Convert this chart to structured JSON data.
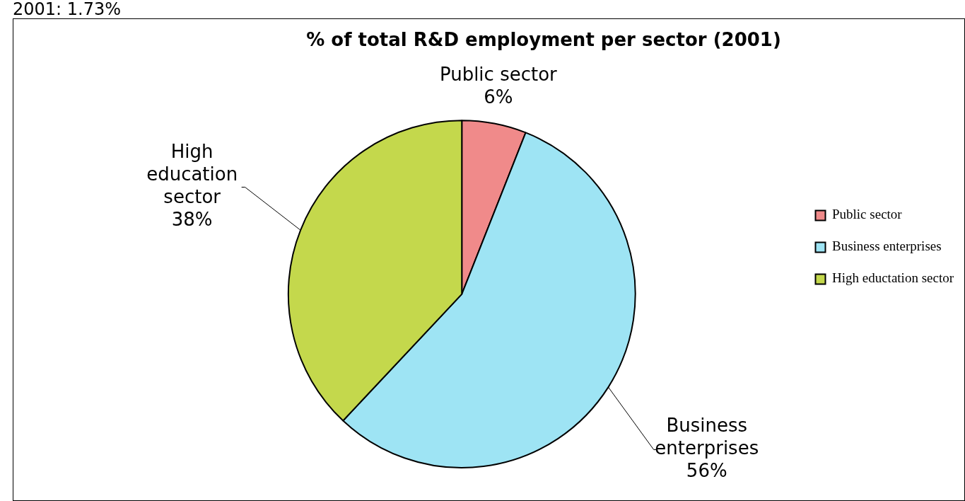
{
  "chart_data": {
    "type": "pie",
    "title": "% of total R&D employment per sector (2001)",
    "annotations": [
      "2001: 1.73%"
    ],
    "categories": [
      "Public sector",
      "Business enterprises",
      "High eductation sector"
    ],
    "values": [
      6,
      56,
      38
    ],
    "colors": [
      "#f08a8a",
      "#9ee4f4",
      "#c4d84c"
    ],
    "value_labels": [
      "Public sector 6%",
      "Business enterprises 56%",
      "High education sector 38%"
    ],
    "legend": "right"
  }
}
